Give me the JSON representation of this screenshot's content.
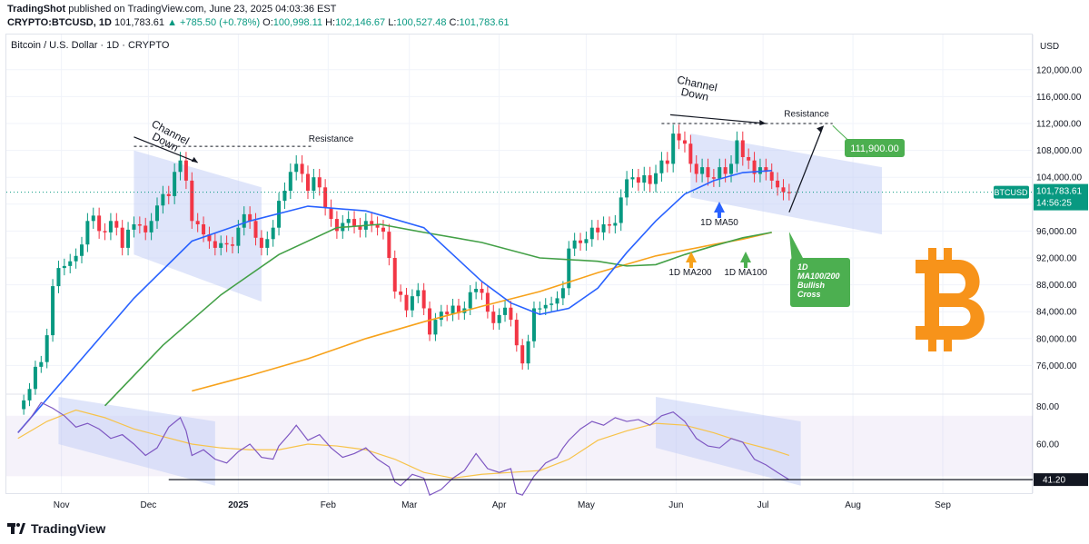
{
  "header": {
    "publisher": "TradingShot",
    "published_text": "published on TradingView.com, June 23, 2025 04:03:36 EST",
    "symbol": "CRYPTO:BTCUSD, 1D",
    "last": "101,783.61",
    "change": "▲ +785.50 (+0.78%)",
    "o_label": "O:",
    "o": "100,998.11",
    "h_label": "H:",
    "h": "102,146.67",
    "l_label": "L:",
    "l": "100,527.48",
    "c_label": "C:",
    "c": "101,783.61"
  },
  "chart_title": "Bitcoin / U.S. Dollar · 1D · CRYPTO",
  "footer_brand": "TradingView",
  "colors": {
    "up": "#089981",
    "down": "#f23645",
    "ma50": "#2962ff",
    "ma100": "#43a047",
    "ma200": "#f7a21b",
    "rsi": "#7e57c2",
    "rsi_ma": "#f7c34a",
    "callout": "#4caf50",
    "bitcoin": "#f7931a",
    "channel": "#c5cff5"
  },
  "chart_data": {
    "type": "candlestick",
    "price_axis": {
      "unit": "USD",
      "ylim": [
        72000,
        122000
      ],
      "ticks": [
        76000,
        80000,
        84000,
        88000,
        92000,
        96000,
        100000,
        104000,
        108000,
        112000,
        116000,
        120000
      ],
      "tick_labels": [
        "76,000.00",
        "80,000.00",
        "84,000.00",
        "88,000.00",
        "92,000.00",
        "96,000.00",
        "100,000.00",
        "104,000.00",
        "108,000.00",
        "112,000.00",
        "116,000.00",
        "120,000.00"
      ]
    },
    "rsi_axis": {
      "ylim": [
        35,
        85
      ],
      "ticks": [
        60,
        80
      ],
      "tick_labels": [
        "60.00",
        "80.00"
      ]
    },
    "x_axis": {
      "labels": [
        "Nov",
        "Dec",
        "2025",
        "Feb",
        "Mar",
        "Apr",
        "May",
        "Jun",
        "Jul",
        "Aug",
        "Sep"
      ],
      "label_days": [
        15,
        45,
        76,
        107,
        135,
        166,
        196,
        227,
        257,
        288,
        319
      ]
    },
    "last_price": {
      "label": "BTCUSD",
      "value": "101,783.61",
      "countdown": "14:56:25",
      "y": 101783.61
    },
    "rsi_last": {
      "value": "41.20",
      "y": 41.2
    },
    "closes": [
      [
        0,
        69500
      ],
      [
        2,
        70800
      ],
      [
        4,
        72500
      ],
      [
        6,
        75800
      ],
      [
        8,
        76500
      ],
      [
        10,
        80500
      ],
      [
        12,
        87800
      ],
      [
        14,
        90500
      ],
      [
        16,
        90800
      ],
      [
        18,
        91500
      ],
      [
        20,
        92300
      ],
      [
        22,
        94000
      ],
      [
        24,
        97500
      ],
      [
        26,
        98300
      ],
      [
        28,
        96000
      ],
      [
        30,
        95800
      ],
      [
        32,
        97500
      ],
      [
        34,
        96500
      ],
      [
        36,
        93500
      ],
      [
        38,
        96200
      ],
      [
        40,
        97000
      ],
      [
        42,
        96800
      ],
      [
        44,
        95800
      ],
      [
        46,
        97500
      ],
      [
        48,
        99800
      ],
      [
        50,
        101500
      ],
      [
        52,
        101200
      ],
      [
        54,
        104800
      ],
      [
        56,
        106500
      ],
      [
        58,
        103500
      ],
      [
        60,
        97500
      ],
      [
        62,
        97000
      ],
      [
        64,
        95500
      ],
      [
        66,
        94500
      ],
      [
        68,
        93500
      ],
      [
        70,
        94200
      ],
      [
        72,
        94000
      ],
      [
        74,
        93800
      ],
      [
        76,
        96500
      ],
      [
        78,
        98500
      ],
      [
        80,
        97500
      ],
      [
        82,
        95000
      ],
      [
        84,
        93500
      ],
      [
        86,
        94800
      ],
      [
        88,
        96500
      ],
      [
        90,
        100500
      ],
      [
        92,
        102000
      ],
      [
        94,
        104800
      ],
      [
        96,
        106000
      ],
      [
        98,
        104500
      ],
      [
        100,
        102000
      ],
      [
        102,
        104000
      ],
      [
        104,
        102500
      ],
      [
        106,
        99500
      ],
      [
        108,
        97800
      ],
      [
        110,
        96000
      ],
      [
        112,
        97200
      ],
      [
        114,
        97800
      ],
      [
        116,
        96800
      ],
      [
        118,
        96200
      ],
      [
        120,
        97500
      ],
      [
        122,
        97000
      ],
      [
        124,
        96500
      ],
      [
        126,
        95900
      ],
      [
        128,
        92000
      ],
      [
        130,
        87000
      ],
      [
        132,
        86500
      ],
      [
        134,
        84200
      ],
      [
        136,
        86300
      ],
      [
        138,
        87200
      ],
      [
        140,
        84500
      ],
      [
        142,
        80600
      ],
      [
        144,
        82800
      ],
      [
        146,
        84000
      ],
      [
        148,
        83600
      ],
      [
        150,
        84900
      ],
      [
        152,
        83800
      ],
      [
        154,
        84500
      ],
      [
        156,
        86900
      ],
      [
        158,
        87400
      ],
      [
        160,
        86800
      ],
      [
        162,
        84000
      ],
      [
        164,
        82300
      ],
      [
        166,
        83500
      ],
      [
        168,
        84600
      ],
      [
        170,
        82800
      ],
      [
        172,
        79000
      ],
      [
        174,
        76300
      ],
      [
        176,
        79600
      ],
      [
        178,
        84500
      ],
      [
        180,
        84500
      ],
      [
        182,
        85000
      ],
      [
        184,
        85200
      ],
      [
        186,
        86000
      ],
      [
        188,
        87500
      ],
      [
        190,
        93400
      ],
      [
        192,
        94600
      ],
      [
        194,
        94200
      ],
      [
        196,
        94800
      ],
      [
        198,
        96500
      ],
      [
        200,
        95800
      ],
      [
        202,
        97000
      ],
      [
        204,
        96800
      ],
      [
        206,
        97200
      ],
      [
        208,
        101000
      ],
      [
        210,
        103700
      ],
      [
        212,
        104000
      ],
      [
        214,
        103200
      ],
      [
        216,
        104300
      ],
      [
        218,
        103000
      ],
      [
        220,
        104600
      ],
      [
        222,
        106500
      ],
      [
        224,
        106000
      ],
      [
        226,
        110500
      ],
      [
        228,
        109500
      ],
      [
        230,
        109000
      ],
      [
        232,
        106000
      ],
      [
        234,
        104500
      ],
      [
        236,
        105500
      ],
      [
        238,
        104000
      ],
      [
        240,
        103800
      ],
      [
        242,
        105500
      ],
      [
        244,
        104500
      ],
      [
        246,
        106000
      ],
      [
        248,
        109500
      ],
      [
        250,
        107000
      ],
      [
        252,
        106500
      ],
      [
        254,
        104500
      ],
      [
        256,
        105500
      ],
      [
        258,
        104800
      ],
      [
        260,
        103500
      ],
      [
        262,
        102500
      ],
      [
        264,
        101800
      ],
      [
        266,
        101783
      ]
    ],
    "ma50": [
      [
        0,
        66000
      ],
      [
        20,
        76000
      ],
      [
        40,
        86000
      ],
      [
        60,
        94500
      ],
      [
        80,
        97500
      ],
      [
        100,
        99700
      ],
      [
        120,
        99000
      ],
      [
        140,
        96500
      ],
      [
        160,
        88500
      ],
      [
        170,
        85300
      ],
      [
        180,
        83600
      ],
      [
        190,
        84500
      ],
      [
        200,
        87500
      ],
      [
        210,
        92800
      ],
      [
        220,
        97500
      ],
      [
        230,
        101500
      ],
      [
        240,
        103500
      ],
      [
        250,
        104700
      ],
      [
        260,
        105000
      ]
    ],
    "ma100": [
      [
        30,
        70000
      ],
      [
        50,
        79000
      ],
      [
        70,
        86500
      ],
      [
        90,
        92500
      ],
      [
        110,
        96500
      ],
      [
        125,
        97000
      ],
      [
        140,
        95800
      ],
      [
        160,
        94300
      ],
      [
        180,
        92000
      ],
      [
        200,
        91500
      ],
      [
        210,
        90800
      ],
      [
        220,
        91000
      ],
      [
        230,
        92500
      ],
      [
        240,
        93800
      ],
      [
        250,
        95000
      ],
      [
        260,
        95800
      ]
    ],
    "ma200": [
      [
        60,
        72200
      ],
      [
        80,
        74500
      ],
      [
        100,
        77000
      ],
      [
        120,
        80000
      ],
      [
        140,
        82500
      ],
      [
        160,
        84800
      ],
      [
        180,
        87000
      ],
      [
        200,
        89800
      ],
      [
        220,
        92300
      ],
      [
        240,
        94000
      ],
      [
        250,
        94800
      ],
      [
        260,
        95800
      ]
    ],
    "rsi": [
      [
        0,
        66
      ],
      [
        4,
        73
      ],
      [
        8,
        82
      ],
      [
        12,
        79
      ],
      [
        16,
        75
      ],
      [
        20,
        69
      ],
      [
        24,
        71
      ],
      [
        28,
        68
      ],
      [
        32,
        63
      ],
      [
        36,
        65
      ],
      [
        40,
        60
      ],
      [
        44,
        54
      ],
      [
        48,
        58
      ],
      [
        52,
        69
      ],
      [
        56,
        74
      ],
      [
        58,
        67
      ],
      [
        60,
        54
      ],
      [
        64,
        57
      ],
      [
        68,
        52
      ],
      [
        72,
        50
      ],
      [
        76,
        56
      ],
      [
        80,
        60
      ],
      [
        84,
        53
      ],
      [
        88,
        52
      ],
      [
        90,
        59
      ],
      [
        94,
        66
      ],
      [
        96,
        70
      ],
      [
        100,
        62
      ],
      [
        104,
        65
      ],
      [
        108,
        58
      ],
      [
        112,
        53
      ],
      [
        116,
        55
      ],
      [
        120,
        58
      ],
      [
        124,
        52
      ],
      [
        128,
        48
      ],
      [
        130,
        40
      ],
      [
        132,
        38
      ],
      [
        136,
        44
      ],
      [
        140,
        42
      ],
      [
        142,
        33
      ],
      [
        146,
        36
      ],
      [
        150,
        42
      ],
      [
        154,
        46
      ],
      [
        158,
        55
      ],
      [
        162,
        47
      ],
      [
        166,
        45
      ],
      [
        170,
        47
      ],
      [
        172,
        34
      ],
      [
        174,
        33
      ],
      [
        178,
        43
      ],
      [
        182,
        50
      ],
      [
        186,
        53
      ],
      [
        188,
        58
      ],
      [
        190,
        62
      ],
      [
        194,
        68
      ],
      [
        198,
        72
      ],
      [
        202,
        70
      ],
      [
        206,
        74
      ],
      [
        210,
        72
      ],
      [
        214,
        73
      ],
      [
        218,
        70
      ],
      [
        222,
        75
      ],
      [
        226,
        77
      ],
      [
        230,
        72
      ],
      [
        234,
        63
      ],
      [
        238,
        59
      ],
      [
        242,
        58
      ],
      [
        246,
        63
      ],
      [
        250,
        61
      ],
      [
        254,
        52
      ],
      [
        258,
        49
      ],
      [
        262,
        45
      ],
      [
        266,
        41.2
      ]
    ],
    "rsi_ma": [
      [
        0,
        63
      ],
      [
        10,
        72
      ],
      [
        20,
        78
      ],
      [
        30,
        74
      ],
      [
        40,
        68
      ],
      [
        50,
        64
      ],
      [
        60,
        60
      ],
      [
        70,
        58
      ],
      [
        80,
        57
      ],
      [
        90,
        57
      ],
      [
        100,
        60
      ],
      [
        110,
        59
      ],
      [
        120,
        57
      ],
      [
        130,
        52
      ],
      [
        140,
        45
      ],
      [
        150,
        42
      ],
      [
        160,
        44
      ],
      [
        170,
        45
      ],
      [
        180,
        46
      ],
      [
        190,
        52
      ],
      [
        200,
        62
      ],
      [
        210,
        67
      ],
      [
        220,
        71
      ],
      [
        230,
        70
      ],
      [
        240,
        66
      ],
      [
        250,
        61
      ],
      [
        260,
        57
      ],
      [
        266,
        54
      ]
    ],
    "annotations": [
      {
        "kind": "text",
        "text": "Channel\nDown",
        "x": 52,
        "y": 108500,
        "rotate": 28
      },
      {
        "kind": "text",
        "text": "Resistance",
        "x": 115,
        "y": 110000
      },
      {
        "kind": "text",
        "text": "Channel\nDown",
        "x": 232,
        "y": 115500,
        "rotate": 10
      },
      {
        "kind": "text",
        "text": "Resistance",
        "x": 282,
        "y": 113000
      },
      {
        "kind": "callout",
        "text": "111,900.00"
      },
      {
        "kind": "label",
        "text": "1D MA50"
      },
      {
        "kind": "label",
        "text": "1D MA200"
      },
      {
        "kind": "label",
        "text": "1D MA100"
      },
      {
        "kind": "callout",
        "text": "1D\nMA100/200\nBullish\nCross"
      }
    ]
  }
}
